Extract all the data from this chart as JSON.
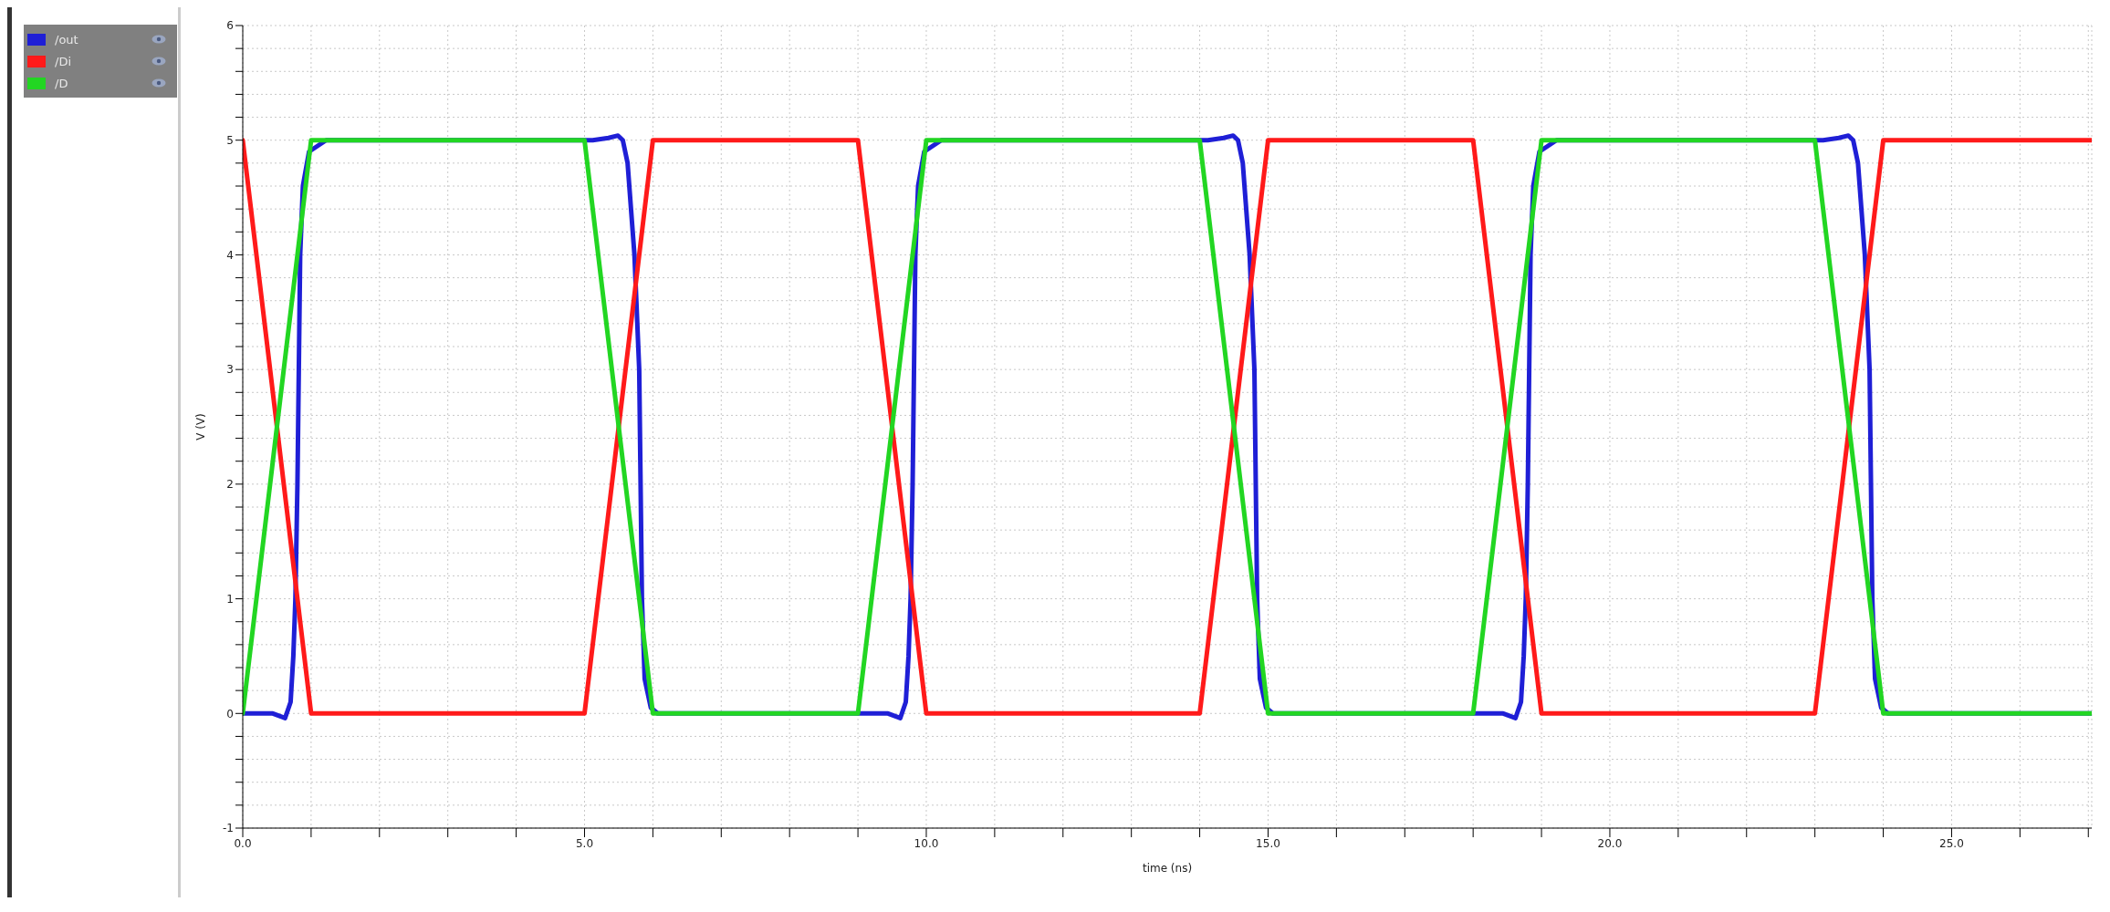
{
  "chart_data": {
    "type": "line",
    "xlabel": "time (ns)",
    "ylabel": "V (V)",
    "xlim": [
      0,
      27.05
    ],
    "xticks": [
      {
        "value": 0,
        "label": "0.0"
      },
      {
        "value": 1,
        "label": null
      },
      {
        "value": 2,
        "label": null
      },
      {
        "value": 3,
        "label": null
      },
      {
        "value": 4,
        "label": null
      },
      {
        "value": 5,
        "label": "5.0"
      },
      {
        "value": 6,
        "label": null
      },
      {
        "value": 7,
        "label": null
      },
      {
        "value": 8,
        "label": null
      },
      {
        "value": 9,
        "label": null
      },
      {
        "value": 10,
        "label": "10.0"
      },
      {
        "value": 11,
        "label": null
      },
      {
        "value": 12,
        "label": null
      },
      {
        "value": 13,
        "label": null
      },
      {
        "value": 14,
        "label": null
      },
      {
        "value": 15,
        "label": "15.0"
      },
      {
        "value": 16,
        "label": null
      },
      {
        "value": 17,
        "label": null
      },
      {
        "value": 18,
        "label": null
      },
      {
        "value": 19,
        "label": null
      },
      {
        "value": 20,
        "label": "20.0"
      },
      {
        "value": 21,
        "label": null
      },
      {
        "value": 22,
        "label": null
      },
      {
        "value": 23,
        "label": null
      },
      {
        "value": 24,
        "label": null
      },
      {
        "value": 25,
        "label": "25.0"
      },
      {
        "value": 26,
        "label": null
      },
      {
        "value": 27,
        "label": null
      }
    ],
    "ylim": [
      -1,
      6
    ],
    "yticks": [
      -1,
      {
        "value": -0.8,
        "label": null
      },
      {
        "value": -0.6,
        "label": null
      },
      {
        "value": -0.4,
        "label": null
      },
      {
        "value": -0.2,
        "label": null
      },
      0,
      {
        "value": 0.2,
        "label": null
      },
      {
        "value": 0.4,
        "label": null
      },
      {
        "value": 0.6,
        "label": null
      },
      {
        "value": 0.8,
        "label": null
      },
      1,
      {
        "value": 1.2,
        "label": null
      },
      {
        "value": 1.4,
        "label": null
      },
      {
        "value": 1.6,
        "label": null
      },
      {
        "value": 1.8,
        "label": null
      },
      2,
      {
        "value": 2.2,
        "label": null
      },
      {
        "value": 2.4,
        "label": null
      },
      {
        "value": 2.6,
        "label": null
      },
      {
        "value": 2.8,
        "label": null
      },
      3,
      {
        "value": 3.2,
        "label": null
      },
      {
        "value": 3.4,
        "label": null
      },
      {
        "value": 3.6,
        "label": null
      },
      {
        "value": 3.8,
        "label": null
      },
      4,
      {
        "value": 4.2,
        "label": null
      },
      {
        "value": 4.4,
        "label": null
      },
      {
        "value": 4.6,
        "label": null
      },
      {
        "value": 4.8,
        "label": null
      },
      5,
      {
        "value": 5.2,
        "label": null
      },
      {
        "value": 5.4,
        "label": null
      },
      {
        "value": 5.6,
        "label": null
      },
      {
        "value": 5.8,
        "label": null
      },
      6
    ],
    "grid": true,
    "legend": "left",
    "marker": "none",
    "line_style": "solid",
    "series": [
      {
        "name": "/out",
        "color": "#1f1fd6",
        "x": [
          0,
          0.44,
          0.62,
          0.7,
          0.74,
          0.77,
          0.8,
          0.84,
          0.88,
          0.97,
          1.22,
          5.12,
          5.35,
          5.49,
          5.56,
          5.63,
          5.73,
          5.8,
          5.84,
          5.88,
          5.97,
          6.07,
          9.44,
          9.62,
          9.7,
          9.74,
          9.77,
          9.8,
          9.84,
          9.88,
          9.97,
          10.22,
          14.12,
          14.35,
          14.49,
          14.56,
          14.63,
          14.73,
          14.8,
          14.84,
          14.88,
          14.97,
          15.07,
          18.44,
          18.62,
          18.7,
          18.74,
          18.77,
          18.8,
          18.84,
          18.88,
          18.97,
          19.22,
          23.12,
          23.35,
          23.49,
          23.56,
          23.63,
          23.73,
          23.8,
          23.84,
          23.88,
          23.97,
          24.07,
          27.05
        ],
        "values": [
          0,
          0,
          -0.04,
          0.1,
          0.5,
          1,
          2,
          4,
          4.6,
          4.9,
          5,
          5,
          5.02,
          5.04,
          5,
          4.8,
          4,
          3,
          1,
          0.3,
          0.05,
          0,
          0,
          -0.04,
          0.1,
          0.5,
          1,
          2,
          4,
          4.6,
          4.9,
          5,
          5,
          5.02,
          5.04,
          5,
          4.8,
          4,
          3,
          1,
          0.3,
          0.05,
          0,
          0,
          -0.04,
          0.1,
          0.5,
          1,
          2,
          4,
          4.6,
          4.9,
          5,
          5,
          5.02,
          5.04,
          5,
          4.8,
          4,
          3,
          1,
          0.3,
          0.05,
          0,
          0
        ]
      },
      {
        "name": "/Di",
        "color": "#ff1a1a",
        "x": [
          0,
          1,
          5,
          6,
          9,
          10,
          14,
          15,
          18,
          19,
          23,
          24,
          27.05
        ],
        "values": [
          5,
          0,
          0,
          5,
          5,
          0,
          0,
          5,
          5,
          0,
          0,
          5,
          5
        ]
      },
      {
        "name": "/D",
        "color": "#22d622",
        "x": [
          0,
          1,
          5,
          6,
          9,
          10,
          14,
          15,
          18,
          19,
          23,
          24,
          27.05
        ],
        "values": [
          0,
          5,
          5,
          0,
          0,
          5,
          5,
          0,
          0,
          5,
          5,
          0,
          0
        ]
      }
    ]
  }
}
